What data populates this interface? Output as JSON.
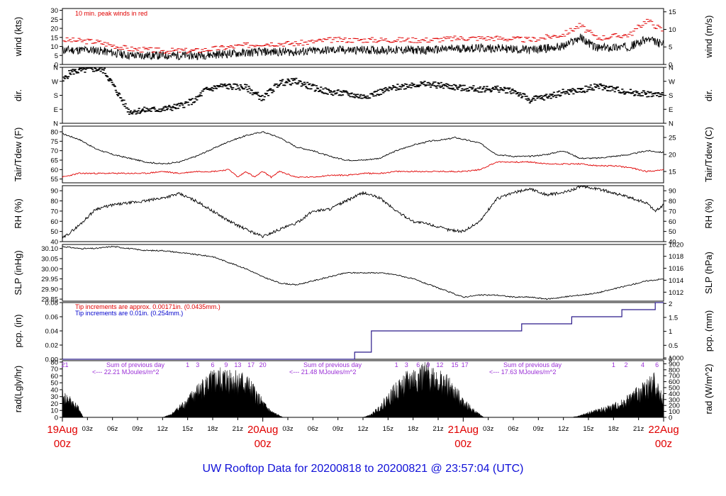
{
  "colors": {
    "black": "#000000",
    "red": "#e00000",
    "blue": "#1010d8",
    "purple": "#9a2fd6",
    "navy": "#2b1a8a"
  },
  "chart_data": {
    "type": "line",
    "title": "UW Rooftop Data for 20200818  to  20200821 @ 23:57:04  (UTC)",
    "x_range_hours": [
      0,
      72
    ],
    "x_ticks": [
      {
        "h": 0,
        "label": "19Aug",
        "sub": "00z",
        "major": true
      },
      {
        "h": 3,
        "label": "03z"
      },
      {
        "h": 6,
        "label": "06z"
      },
      {
        "h": 9,
        "label": "09z"
      },
      {
        "h": 12,
        "label": "12z"
      },
      {
        "h": 15,
        "label": "15z"
      },
      {
        "h": 18,
        "label": "18z"
      },
      {
        "h": 21,
        "label": "21z"
      },
      {
        "h": 24,
        "label": "20Aug",
        "sub": "00z",
        "major": true
      },
      {
        "h": 27,
        "label": "03z"
      },
      {
        "h": 30,
        "label": "06z"
      },
      {
        "h": 33,
        "label": "09z"
      },
      {
        "h": 36,
        "label": "12z"
      },
      {
        "h": 39,
        "label": "15z"
      },
      {
        "h": 42,
        "label": "18z"
      },
      {
        "h": 45,
        "label": "21z"
      },
      {
        "h": 48,
        "label": "21Aug",
        "sub": "00z",
        "major": true
      },
      {
        "h": 51,
        "label": "03z"
      },
      {
        "h": 54,
        "label": "06z"
      },
      {
        "h": 57,
        "label": "09z"
      },
      {
        "h": 60,
        "label": "12z"
      },
      {
        "h": 63,
        "label": "15z"
      },
      {
        "h": 66,
        "label": "18z"
      },
      {
        "h": 69,
        "label": "21z"
      },
      {
        "h": 72,
        "label": "22Aug",
        "sub": "00z",
        "major": true
      }
    ],
    "panels": {
      "wind": {
        "ylabel_left": "wind (kts)",
        "ylabel_right": "wind (m/s)",
        "ylim": [
          0,
          31
        ],
        "left_ticks": [
          0,
          5,
          10,
          15,
          20,
          25,
          30
        ],
        "right_ticks": [
          0,
          5,
          10,
          15
        ],
        "annotation": "10 min. peak winds in red",
        "series": [
          {
            "kind": "mean",
            "x": [
              0,
              4,
              8,
              12,
              16,
              20,
              24,
              28,
              32,
              36,
              40,
              44,
              48,
              52,
              56,
              60,
              62,
              64,
              68,
              70,
              72
            ],
            "y": [
              8,
              8,
              5,
              5,
              5,
              6,
              7,
              7,
              8,
              8,
              8,
              8,
              9,
              9,
              8,
              10,
              15,
              9,
              10,
              14,
              11
            ]
          },
          {
            "kind": "peak",
            "x": [
              0,
              4,
              8,
              12,
              16,
              20,
              24,
              28,
              32,
              36,
              40,
              44,
              48,
              52,
              56,
              60,
              62,
              64,
              68,
              70,
              72
            ],
            "y": [
              13,
              12,
              8,
              7,
              7,
              9,
              11,
              11,
              13,
              13,
              13,
              13,
              14,
              14,
              13,
              16,
              21,
              14,
              16,
              24,
              18
            ]
          }
        ]
      },
      "dir": {
        "ylabel_left": "dir.",
        "ylabel_right": "dir.",
        "left_ticks": [
          "N",
          "E",
          "S",
          "W",
          "N"
        ],
        "right_ticks": [
          "N",
          "E",
          "S",
          "W",
          "N"
        ],
        "series": [
          {
            "name": "direction",
            "x": [
              0,
              1,
              3,
              4,
              5,
              8,
              10,
              12,
              14,
              16,
              17,
              19,
              22,
              24,
              26,
              28,
              30,
              32,
              34,
              36,
              38,
              40,
              42,
              44,
              46,
              48,
              50,
              52,
              54,
              56,
              58,
              60,
              62,
              64,
              66,
              68,
              70,
              72
            ],
            "y": [
              270,
              330,
              345,
              350,
              340,
              75,
              85,
              90,
              110,
              150,
              210,
              240,
              230,
              160,
              260,
              270,
              230,
              200,
              190,
              170,
              200,
              230,
              250,
              250,
              240,
              225,
              220,
              220,
              210,
              150,
              170,
              200,
              210,
              240,
              220,
              200,
              190,
              180
            ]
          }
        ]
      },
      "temp": {
        "ylabel_left": "Tair/Tdew (F)",
        "ylabel_right": "Tair/Tdew (C)",
        "ylim": [
          53,
          83
        ],
        "left_ticks": [
          55,
          60,
          65,
          70,
          75,
          80
        ],
        "right_ticks": [
          15,
          20,
          25
        ],
        "series": [
          {
            "name": "Tair",
            "x": [
              0,
              2,
              4,
              6,
              8,
              10,
              12,
              14,
              16,
              18,
              20,
              22,
              24,
              26,
              28,
              30,
              32,
              34,
              36,
              38,
              40,
              42,
              44,
              46,
              47,
              48,
              50,
              52,
              54,
              56,
              58,
              60,
              62,
              64,
              66,
              68,
              70,
              72
            ],
            "y": [
              79,
              76,
              71,
              68,
              66,
              64,
              63,
              64,
              67,
              71,
              75,
              78,
              80,
              77,
              72,
              70,
              67,
              65,
              65,
              66,
              70,
              73,
              75,
              76,
              77,
              76,
              74,
              68,
              67,
              67,
              68,
              70,
              66,
              66,
              67,
              68,
              70,
              69
            ]
          },
          {
            "name": "Tdew",
            "x": [
              0,
              2,
              4,
              6,
              8,
              10,
              12,
              14,
              16,
              18,
              20,
              21,
              22,
              23,
              24,
              25,
              26,
              28,
              30,
              32,
              34,
              36,
              38,
              40,
              42,
              44,
              46,
              48,
              50,
              52,
              54,
              56,
              58,
              60,
              62,
              64,
              66,
              68,
              70,
              72
            ],
            "y": [
              56,
              58,
              58,
              58,
              58,
              58,
              59,
              58,
              59,
              59,
              60,
              56,
              59,
              56,
              59,
              56,
              59,
              56,
              56,
              57,
              57,
              58,
              58,
              59,
              59,
              59,
              59,
              59,
              60,
              64,
              64,
              64,
              63,
              63,
              63,
              62,
              62,
              61,
              59,
              60
            ]
          }
        ]
      },
      "rh": {
        "ylabel_left": "RH (%)",
        "ylabel_right": "RH (%)",
        "ylim": [
          40,
          95
        ],
        "left_ticks": [
          40,
          50,
          60,
          70,
          80,
          90
        ],
        "right_ticks": [
          40,
          50,
          60,
          70,
          80,
          90
        ],
        "series": [
          {
            "name": "RH",
            "x": [
              0,
              2,
              4,
              6,
              8,
              10,
              12,
              14,
              16,
              18,
              20,
              22,
              24,
              26,
              28,
              30,
              32,
              34,
              36,
              38,
              40,
              42,
              44,
              46,
              48,
              50,
              52,
              54,
              56,
              58,
              60,
              62,
              64,
              66,
              68,
              70,
              71,
              72
            ],
            "y": [
              43,
              56,
              72,
              76,
              78,
              80,
              83,
              87,
              80,
              70,
              60,
              52,
              45,
              52,
              58,
              70,
              72,
              80,
              88,
              83,
              70,
              60,
              57,
              52,
              50,
              60,
              82,
              88,
              92,
              86,
              88,
              94,
              92,
              88,
              83,
              78,
              70,
              76
            ]
          }
        ]
      },
      "slp": {
        "ylabel_left": "SLP (inHg)",
        "ylabel_right": "SLP (hPa)",
        "ylim": [
          29.84,
          30.12
        ],
        "left_ticks": [
          29.85,
          29.9,
          29.95,
          30.0,
          30.05,
          30.1
        ],
        "left_tick_labels": [
          "29.85",
          "29.90",
          "29.95",
          "30.00",
          "30.05",
          "30.10"
        ],
        "right_ticks_hpa": [
          1012,
          1014,
          1016,
          1018,
          1020
        ],
        "series": [
          {
            "name": "SLP",
            "x": [
              0,
              2,
              4,
              6,
              8,
              10,
              12,
              14,
              16,
              18,
              20,
              22,
              24,
              26,
              28,
              30,
              32,
              34,
              36,
              38,
              40,
              42,
              44,
              46,
              48,
              50,
              52,
              54,
              56,
              58,
              60,
              62,
              64,
              66,
              68,
              70,
              72
            ],
            "y": [
              30.11,
              30.1,
              30.1,
              30.11,
              30.1,
              30.09,
              30.09,
              30.08,
              30.07,
              30.06,
              30.03,
              30.0,
              29.96,
              29.93,
              29.92,
              29.94,
              29.96,
              29.98,
              29.98,
              29.98,
              29.97,
              29.95,
              29.92,
              29.89,
              29.86,
              29.87,
              29.87,
              29.86,
              29.86,
              29.85,
              29.86,
              29.87,
              29.88,
              29.9,
              29.92,
              29.94,
              29.95
            ]
          }
        ]
      },
      "pcp": {
        "ylabel_left": "pcp. (in)",
        "ylabel_right": "pcp. (mm)",
        "ylim": [
          0,
          0.08
        ],
        "left_ticks": [
          0,
          0.02,
          0.04,
          0.06,
          0.08
        ],
        "left_tick_labels": [
          "0.00",
          "0.02",
          "0.04",
          "0.06",
          "0.08"
        ],
        "right_ticks_mm": [
          0,
          0.5,
          1,
          1.5,
          2
        ],
        "right_tick_labels": [
          "0",
          "0.5",
          "1",
          "1.5",
          "2"
        ],
        "annotation_red": "Tip increments are approx. 0.00171in. (0.0435mm.)",
        "annotation_blue": "Tip increments are 0.01in. (0.254mm.)",
        "series": [
          {
            "name": "cumulative",
            "x": [
              0,
              35,
              35,
              37,
              37,
              55,
              55,
              61,
              61,
              67,
              67,
              71,
              71,
              72
            ],
            "y": [
              0,
              0,
              0.01,
              0.01,
              0.04,
              0.04,
              0.05,
              0.05,
              0.06,
              0.06,
              0.07,
              0.07,
              0.08,
              0.08
            ]
          }
        ]
      },
      "rad": {
        "ylabel_left": "rad(Lgly/hr)",
        "ylabel_right": "rad (W/m^2)",
        "ylim": [
          0,
          82
        ],
        "left_ticks": [
          0,
          10,
          20,
          30,
          40,
          50,
          60,
          70,
          80
        ],
        "right_ticks_wm2": [
          0,
          100,
          200,
          300,
          400,
          500,
          600,
          700,
          800,
          900,
          1000
        ],
        "annotations": [
          "Sum of previous day",
          "<--- 22.21 MJoules/m^2",
          "Sum of previous day",
          "<--- 21.48 MJoules/m^2",
          "Sum of previous day",
          "<--- 17.63 MJoules/m^2"
        ],
        "hour_marks": [
          {
            "h": 0.3,
            "label": "21"
          },
          {
            "h": 15,
            "label": "1"
          },
          {
            "h": 16.2,
            "label": "3"
          },
          {
            "h": 18,
            "label": "6"
          },
          {
            "h": 19.6,
            "label": "9"
          },
          {
            "h": 21,
            "label": "13"
          },
          {
            "h": 22.6,
            "label": "17"
          },
          {
            "h": 24,
            "label": "20"
          },
          {
            "h": 40,
            "label": "1"
          },
          {
            "h": 41.2,
            "label": "3"
          },
          {
            "h": 42.6,
            "label": "6"
          },
          {
            "h": 43.8,
            "label": "9"
          },
          {
            "h": 45.2,
            "label": "12"
          },
          {
            "h": 47,
            "label": "15"
          },
          {
            "h": 48.2,
            "label": "17"
          },
          {
            "h": 66,
            "label": "1"
          },
          {
            "h": 67.5,
            "label": "2"
          },
          {
            "h": 69.5,
            "label": "4"
          },
          {
            "h": 71.2,
            "label": "6"
          }
        ],
        "series": [
          {
            "name": "radiation",
            "x": [
              0,
              1,
              2,
              2.5,
              12,
              13,
              14,
              15,
              16,
              17,
              18,
              19,
              20,
              21,
              22,
              23,
              24,
              25,
              26,
              26.5,
              36,
              37,
              38,
              39,
              40,
              41,
              42,
              43,
              44,
              45,
              46,
              47,
              48,
              49,
              50,
              50.5,
              61,
              62,
              63,
              64,
              65,
              66,
              67,
              68,
              69,
              70,
              71,
              71.5,
              72
            ],
            "y": [
              38,
              30,
              15,
              0,
              0,
              5,
              18,
              30,
              45,
              58,
              66,
              70,
              72,
              68,
              62,
              45,
              25,
              10,
              3,
              0,
              0,
              5,
              18,
              35,
              50,
              62,
              72,
              75,
              78,
              70,
              60,
              45,
              30,
              15,
              5,
              0,
              0,
              3,
              8,
              12,
              15,
              20,
              25,
              35,
              45,
              55,
              65,
              40,
              35
            ]
          }
        ]
      }
    }
  }
}
